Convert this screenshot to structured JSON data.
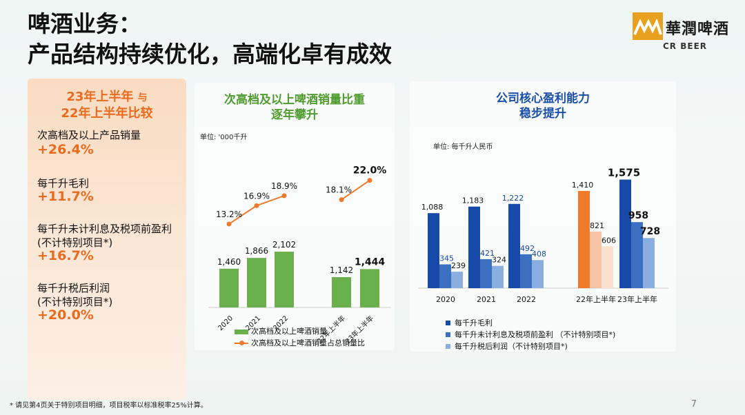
{
  "header": {
    "title_line1": "啤酒业务：",
    "title_line2": "产品结构持续优化，高端化卓有成效"
  },
  "logo": {
    "name": "華潤啤酒",
    "sub": "CR BEER",
    "brand_color": "#e8a11e"
  },
  "left_panel": {
    "heading_part1": "23年上半年",
    "heading_connector": "与",
    "heading_line2": "22年上半年比较",
    "metrics": [
      {
        "label": "次高档及以上产品销量",
        "value": "+26.4%"
      },
      {
        "label": "每千升毛利",
        "value": "+11.7%"
      },
      {
        "label": "每千升未计利息及税项前盈利\n(不计特别项目*)",
        "value": "+16.7%"
      },
      {
        "label": "每千升税后利润\n(不计特别项目*)",
        "value": "+20.0%"
      }
    ]
  },
  "chart_data": [
    {
      "type": "bar",
      "title": "次高档及以上啤酒销量比重\n逐年攀升",
      "unit_label": "单位: '000千升",
      "categories": [
        "2020",
        "2021",
        "2022",
        "22年上半年",
        "23年上半年"
      ],
      "series": [
        {
          "name": "次高档及以上啤酒销量",
          "type": "bar",
          "values": [
            1460,
            1866,
            2102,
            1142,
            1444
          ],
          "color": "#6ab04c"
        },
        {
          "name": "次高档及以上啤酒销量占总销量比",
          "type": "line",
          "values": [
            13.2,
            16.9,
            18.9,
            18.1,
            22.0
          ],
          "labels": [
            "13.2%",
            "16.9%",
            "18.9%",
            "18.1%",
            "22.0%"
          ],
          "color": "#f07a2a"
        }
      ],
      "value_labels": [
        "1,460",
        "1,866",
        "2,102",
        "1,142",
        "1,444"
      ],
      "ylim": [
        0,
        2500
      ]
    },
    {
      "type": "bar",
      "title": "公司核心盈利能力\n稳步提升",
      "unit_label": "单位: 每千升人民币",
      "categories": [
        "2020",
        "2021",
        "2022",
        "22年上半年",
        "23年上半年"
      ],
      "series": [
        {
          "name": "每千升毛利",
          "values": [
            1088,
            1183,
            1222,
            1410,
            1575
          ],
          "labels": [
            "1,088",
            "1,183",
            "1,222",
            "1,410",
            "1,575"
          ]
        },
        {
          "name": "每千升未计利息及税项前盈利 （不计特别项目*)",
          "values": [
            345,
            421,
            492,
            821,
            958
          ],
          "labels": [
            "345",
            "421",
            "492",
            "821",
            "958"
          ]
        },
        {
          "name": "每千升税后利润（不计特别项目*)",
          "values": [
            239,
            324,
            408,
            606,
            728
          ],
          "labels": [
            "239",
            "324",
            "408",
            "606",
            "728"
          ]
        }
      ],
      "colors_annual": [
        "#1649a8",
        "#3a6fc2",
        "#8aaee0"
      ],
      "colors_22h1": [
        "#f07a2a",
        "#f6c3a4",
        "#fbe0cd"
      ],
      "colors_23h1": [
        "#1649a8",
        "#3a6fc2",
        "#8aaee0"
      ],
      "ylim": [
        0,
        1800
      ]
    }
  ],
  "footnote": "* 请见第4页关于特别项目明细，项目税率以标准税率25%计算。",
  "page_number": "7"
}
